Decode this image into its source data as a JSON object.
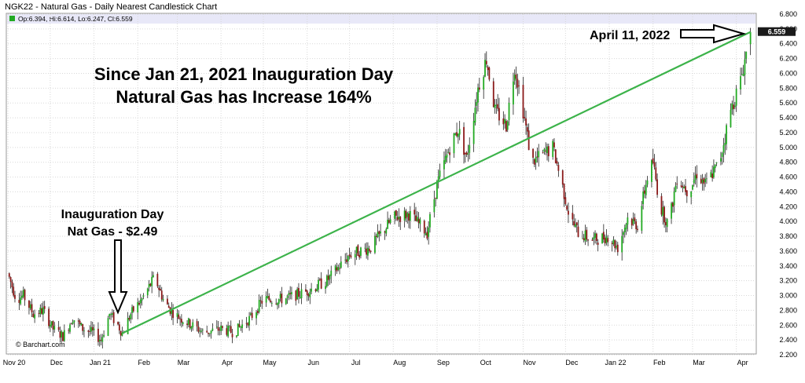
{
  "header": {
    "title": "NGK22 - Natural Gas - Daily Nearest Candlestick Chart",
    "ohlc": "Op:6.394, Hi:6.614, Lo:6.247, Cl:6.559"
  },
  "watermark": "© Barchart.com",
  "colors": {
    "up": "#22aa22",
    "down": "#8b1a1a",
    "trend": "#3cb34a",
    "ohlc_box": "#22aa22",
    "last_price_box": "#1a1a1a",
    "header_band": "#e8e8f8"
  },
  "annotations": {
    "headline_1": "Since Jan 21, 2021 Inauguration Day",
    "headline_2": "Natural Gas has Increase 164%",
    "inaug_1": "Inauguration Day",
    "inaug_2": "Nat Gas - $2.49",
    "april_label": "April 11, 2022"
  },
  "last_price": "6.559",
  "chart_data": {
    "type": "candlestick",
    "title": "NGK22 - Natural Gas - Daily Nearest Candlestick Chart",
    "ylim": [
      2.2,
      6.8
    ],
    "y_ticks": [
      "2.200",
      "2.400",
      "2.600",
      "2.800",
      "3.000",
      "3.200",
      "3.400",
      "3.600",
      "3.800",
      "4.000",
      "4.200",
      "4.400",
      "4.600",
      "4.800",
      "5.000",
      "5.200",
      "5.400",
      "5.600",
      "5.800",
      "6.000",
      "6.200",
      "6.400",
      "6.600",
      "6.800"
    ],
    "x_ticks": [
      "Nov 20",
      "Dec",
      "Jan 21",
      "Feb",
      "Mar",
      "Apr",
      "May",
      "Jun",
      "Jul",
      "Aug",
      "Sep",
      "Oct",
      "Nov",
      "Dec",
      "Jan 22",
      "Feb",
      "Mar",
      "Apr"
    ],
    "x_range": [
      "2020-11-01",
      "2022-04-14"
    ],
    "grid": true,
    "trendline": {
      "from": {
        "date": "2021-01-21",
        "value": 2.49
      },
      "to": {
        "date": "2022-04-11",
        "value": 6.559
      }
    },
    "close_path": [
      {
        "date": "2020-11-01",
        "close": 3.3
      },
      {
        "date": "2020-11-07",
        "close": 2.95
      },
      {
        "date": "2020-11-12",
        "close": 3.0
      },
      {
        "date": "2020-11-19",
        "close": 2.75
      },
      {
        "date": "2020-11-26",
        "close": 2.8
      },
      {
        "date": "2020-12-03",
        "close": 2.55
      },
      {
        "date": "2020-12-10",
        "close": 2.45
      },
      {
        "date": "2020-12-17",
        "close": 2.7
      },
      {
        "date": "2020-12-24",
        "close": 2.55
      },
      {
        "date": "2020-12-31",
        "close": 2.5
      },
      {
        "date": "2021-01-06",
        "close": 2.4
      },
      {
        "date": "2021-01-12",
        "close": 2.75
      },
      {
        "date": "2021-01-18",
        "close": 2.6
      },
      {
        "date": "2021-01-21",
        "close": 2.49
      },
      {
        "date": "2021-01-27",
        "close": 2.75
      },
      {
        "date": "2021-02-04",
        "close": 2.95
      },
      {
        "date": "2021-02-13",
        "close": 3.25
      },
      {
        "date": "2021-02-20",
        "close": 2.9
      },
      {
        "date": "2021-02-27",
        "close": 2.75
      },
      {
        "date": "2021-03-07",
        "close": 2.65
      },
      {
        "date": "2021-03-20",
        "close": 2.5
      },
      {
        "date": "2021-04-01",
        "close": 2.55
      },
      {
        "date": "2021-04-10",
        "close": 2.5
      },
      {
        "date": "2021-04-22",
        "close": 2.7
      },
      {
        "date": "2021-05-01",
        "close": 2.95
      },
      {
        "date": "2021-05-15",
        "close": 2.95
      },
      {
        "date": "2021-05-31",
        "close": 3.05
      },
      {
        "date": "2021-06-15",
        "close": 3.2
      },
      {
        "date": "2021-07-01",
        "close": 3.55
      },
      {
        "date": "2021-07-16",
        "close": 3.65
      },
      {
        "date": "2021-08-01",
        "close": 4.05
      },
      {
        "date": "2021-08-12",
        "close": 4.1
      },
      {
        "date": "2021-08-25",
        "close": 3.85
      },
      {
        "date": "2021-09-01",
        "close": 4.5
      },
      {
        "date": "2021-09-10",
        "close": 5.0
      },
      {
        "date": "2021-09-16",
        "close": 5.25
      },
      {
        "date": "2021-09-22",
        "close": 4.85
      },
      {
        "date": "2021-09-30",
        "close": 5.8
      },
      {
        "date": "2021-10-06",
        "close": 6.2
      },
      {
        "date": "2021-10-12",
        "close": 5.5
      },
      {
        "date": "2021-10-20",
        "close": 5.3
      },
      {
        "date": "2021-10-26",
        "close": 6.1
      },
      {
        "date": "2021-11-01",
        "close": 5.5
      },
      {
        "date": "2021-11-07",
        "close": 4.8
      },
      {
        "date": "2021-11-15",
        "close": 4.9
      },
      {
        "date": "2021-11-22",
        "close": 5.0
      },
      {
        "date": "2021-11-28",
        "close": 4.55
      },
      {
        "date": "2021-12-04",
        "close": 4.05
      },
      {
        "date": "2021-12-10",
        "close": 3.85
      },
      {
        "date": "2021-12-20",
        "close": 3.75
      },
      {
        "date": "2021-12-31",
        "close": 3.8
      },
      {
        "date": "2022-01-07",
        "close": 3.65
      },
      {
        "date": "2022-01-14",
        "close": 4.05
      },
      {
        "date": "2022-01-21",
        "close": 3.95
      },
      {
        "date": "2022-01-28",
        "close": 4.6
      },
      {
        "date": "2022-02-01",
        "close": 4.8
      },
      {
        "date": "2022-02-06",
        "close": 4.2
      },
      {
        "date": "2022-02-12",
        "close": 3.95
      },
      {
        "date": "2022-02-18",
        "close": 4.6
      },
      {
        "date": "2022-02-26",
        "close": 4.4
      },
      {
        "date": "2022-03-04",
        "close": 4.65
      },
      {
        "date": "2022-03-10",
        "close": 4.5
      },
      {
        "date": "2022-03-20",
        "close": 4.8
      },
      {
        "date": "2022-03-28",
        "close": 5.5
      },
      {
        "date": "2022-04-04",
        "close": 5.9
      },
      {
        "date": "2022-04-11",
        "close": 6.559
      }
    ],
    "last_bar": {
      "date": "2022-04-11",
      "open": 6.394,
      "high": 6.614,
      "low": 6.247,
      "close": 6.559
    }
  }
}
